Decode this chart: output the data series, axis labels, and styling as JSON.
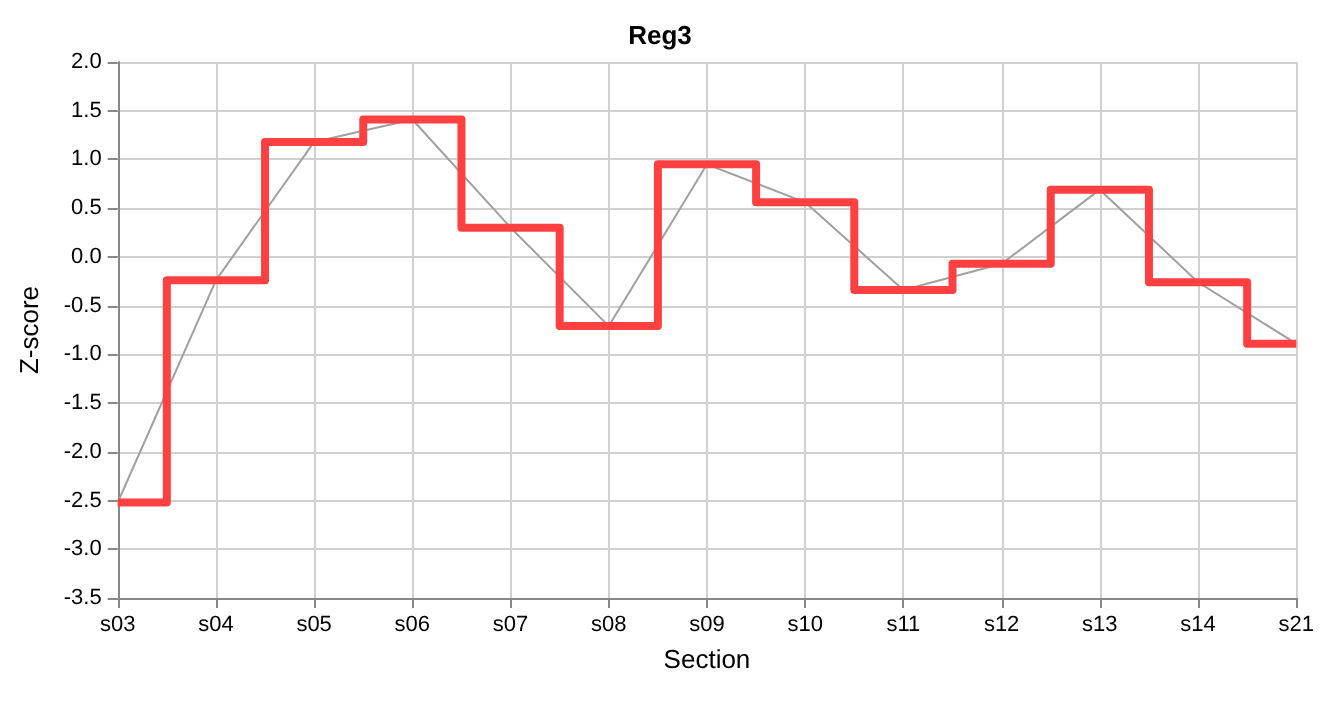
{
  "chart_data": {
    "type": "step",
    "title": "Reg3",
    "xlabel": "Section",
    "ylabel": "Z-score",
    "categories": [
      "s03",
      "s04",
      "s05",
      "s06",
      "s07",
      "s08",
      "s09",
      "s10",
      "s11",
      "s12",
      "s13",
      "s14",
      "s21"
    ],
    "series": [
      {
        "type": "line",
        "color": "#a0a0a0",
        "values": [
          -2.52,
          -0.24,
          1.18,
          1.41,
          0.3,
          -0.71,
          0.95,
          0.56,
          -0.34,
          -0.07,
          0.69,
          -0.26,
          -0.89
        ]
      },
      {
        "type": "step",
        "color": "#ff4040",
        "values": [
          -2.52,
          -0.24,
          1.18,
          1.41,
          0.3,
          -0.71,
          0.95,
          0.56,
          -0.34,
          -0.07,
          0.69,
          -0.26,
          -0.89
        ]
      }
    ],
    "ylim": [
      -3.5,
      2.0
    ],
    "yticks": [
      {
        "value": -3.5,
        "label": "-3.5"
      },
      {
        "value": -3,
        "label": "-3.0"
      },
      {
        "value": -2.5,
        "label": "-2.5"
      },
      {
        "value": -2,
        "label": "-2.0"
      },
      {
        "value": -1.5,
        "label": "-1.5"
      },
      {
        "value": -1,
        "label": "-1.0"
      },
      {
        "value": -0.5,
        "label": "-0.5"
      },
      {
        "value": 0,
        "label": "0.0"
      },
      {
        "value": 0.5,
        "label": "0.5"
      },
      {
        "value": 1,
        "label": "1.0"
      },
      {
        "value": 1.5,
        "label": "1.5"
      },
      {
        "value": 2,
        "label": "2.0"
      }
    ],
    "grid": true,
    "marker": "none"
  }
}
